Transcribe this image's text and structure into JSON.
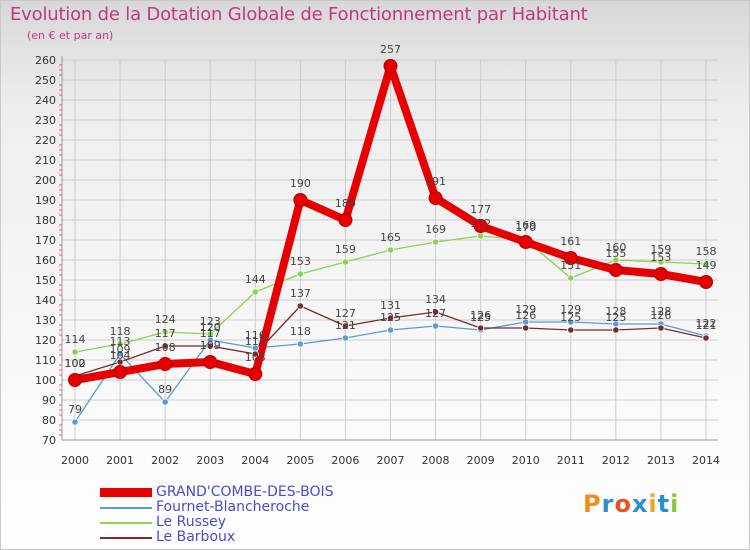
{
  "header": {
    "title": "Evolution de la Dotation Globale de Fonctionnement par Habitant",
    "subtitle": "(en € et par an)"
  },
  "logo": {
    "text": "Proxiti"
  },
  "colors": {
    "title": "#c03a78",
    "grid": "#cccccc",
    "axis_tick": "#e05a8a"
  },
  "chart_data": {
    "type": "line",
    "title": "Evolution de la Dotation Globale de Fonctionnement par Habitant",
    "ylabel": "(en € et par an)",
    "xlabel": "",
    "ylim": [
      70,
      260
    ],
    "ytick_step": 10,
    "grid": true,
    "legend_position": "bottom-left",
    "x": [
      "2000",
      "2001",
      "2002",
      "2003",
      "2004",
      "2005",
      "2006",
      "2007",
      "2008",
      "2009",
      "2010",
      "2011",
      "2012",
      "2013",
      "2014"
    ],
    "series": [
      {
        "name": "Fournet-Blancheroche",
        "color": "#5b9bd5",
        "emphasis": false,
        "values": [
          79,
          113,
          89,
          120,
          116,
          118,
          121,
          125,
          127,
          125,
          129,
          129,
          128,
          128,
          122
        ],
        "labels": [
          "79",
          "113",
          "89",
          "120",
          "116",
          "118",
          "121",
          "125",
          "127",
          "125",
          "129",
          "129",
          "128",
          "128",
          "122"
        ]
      },
      {
        "name": "Le Russey",
        "color": "#8ad350",
        "emphasis": false,
        "values": [
          114,
          118,
          124,
          123,
          144,
          153,
          159,
          165,
          169,
          172,
          170,
          151,
          160,
          159,
          158
        ],
        "labels": [
          "114",
          "118",
          "124",
          "123",
          "144",
          "153",
          "159",
          "165",
          "169",
          "172",
          "170",
          "151",
          "160",
          "159",
          "158"
        ]
      },
      {
        "name": "Le Barboux",
        "color": "#7a2b2b",
        "emphasis": false,
        "values": [
          102,
          109,
          117,
          117,
          113,
          137,
          127,
          131,
          134,
          126,
          126,
          125,
          125,
          126,
          121
        ],
        "labels": [
          "102",
          "109",
          "117",
          "117",
          "113",
          "137",
          "127",
          "131",
          "134",
          "126",
          "126",
          "125",
          "125",
          "126",
          "121"
        ]
      },
      {
        "name": "GRAND'COMBE-DES-BOIS",
        "color": "#e60000",
        "emphasis": true,
        "values": [
          100,
          104,
          108,
          109,
          103,
          190,
          180,
          257,
          191,
          177,
          169,
          161,
          155,
          153,
          149
        ],
        "labels": [
          "100",
          "104",
          "108",
          "109",
          "103",
          "190",
          "180",
          "257",
          "191",
          "177",
          "169",
          "161",
          "155",
          "153",
          "149"
        ]
      }
    ],
    "legend_order": [
      3,
      0,
      1,
      2
    ]
  }
}
